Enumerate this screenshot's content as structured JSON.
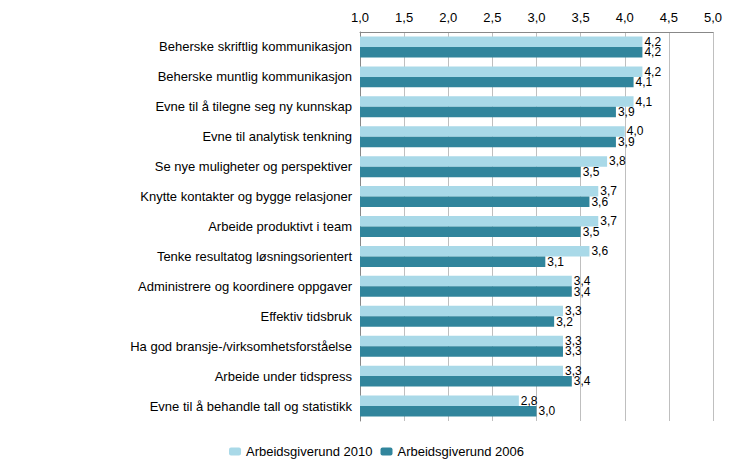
{
  "chart_data": {
    "type": "bar",
    "orientation": "horizontal",
    "categories": [
      "Beherske skriftlig kommunikasjon",
      "Beherske muntlig kommunikasjon",
      "Evne til å tilegne seg ny kunnskap",
      "Evne til analytisk tenkning",
      "Se nye muligheter og perspektiver",
      "Knytte kontakter og bygge relasjoner",
      "Arbeide produktivt i team",
      "Tenke resultatog løsningsorientert",
      "Administrere og koordinere oppgaver",
      "Effektiv tidsbruk",
      "Ha god bransje-/virksomhetsforståelse",
      "Arbeide under tidspress",
      "Evne til å behandle tall og statistikk"
    ],
    "series": [
      {
        "name": "Arbeidsgiverund 2010",
        "color": "#a9d9e8",
        "values": [
          4.2,
          4.2,
          4.1,
          4.0,
          3.8,
          3.7,
          3.7,
          3.6,
          3.4,
          3.3,
          3.3,
          3.3,
          2.8
        ],
        "value_labels": [
          "4,2",
          "4,2",
          "4,1",
          "4,0",
          "3,8",
          "3,7",
          "3,7",
          "3,6",
          "3,4",
          "3,3",
          "3,3",
          "3,3",
          "2,8"
        ]
      },
      {
        "name": "Arbeidsgiverund 2006",
        "color": "#31859c",
        "values": [
          4.2,
          4.1,
          3.9,
          3.9,
          3.5,
          3.6,
          3.5,
          3.1,
          3.4,
          3.2,
          3.3,
          3.4,
          3.0
        ],
        "value_labels": [
          "4,2",
          "4,1",
          "3,9",
          "3,9",
          "3,5",
          "3,6",
          "3,5",
          "3,1",
          "3,4",
          "3,2",
          "3,3",
          "3,4",
          "3,0"
        ]
      }
    ],
    "xlim": [
      1.0,
      5.0
    ],
    "xticks": [
      {
        "value": 1.0,
        "label": "1,0"
      },
      {
        "value": 1.5,
        "label": "1,5"
      },
      {
        "value": 2.0,
        "label": "2,0"
      },
      {
        "value": 2.5,
        "label": "2,5"
      },
      {
        "value": 3.0,
        "label": "3,0"
      },
      {
        "value": 3.5,
        "label": "3,5"
      },
      {
        "value": 4.0,
        "label": "4,0"
      },
      {
        "value": 4.5,
        "label": "4,5"
      },
      {
        "value": 5.0,
        "label": "5,0"
      }
    ],
    "grid": true,
    "legend": "bottom",
    "data_labels": true
  }
}
